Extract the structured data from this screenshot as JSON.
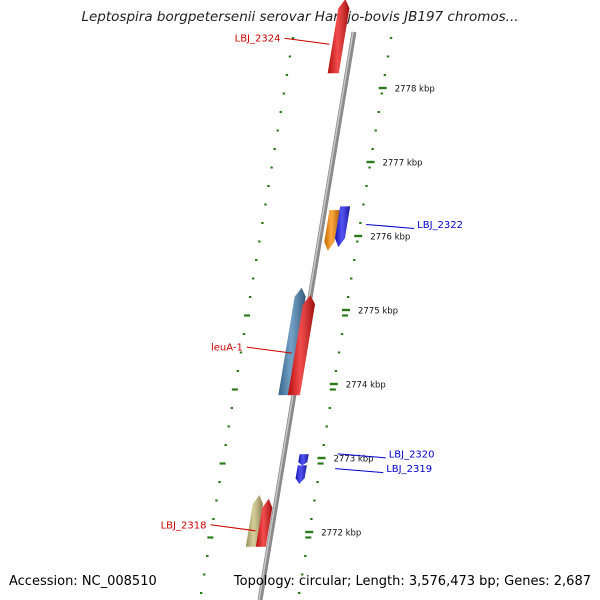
{
  "title": "Leptospira borgpetersenii serovar Hardjo-bovis JB197 chromos...",
  "footer": {
    "accession": "Accession: NC_008510",
    "summary": "Topology: circular; Length: 3,576,473 bp; Genes: 2,687"
  },
  "colors": {
    "backbone": "#8a8a8a",
    "tick": "#2a7a1a",
    "left_label": "#cc0000",
    "right_label": "#0000cc",
    "red": "#ee1111",
    "blue": "#1a1aee",
    "orange": "#ff8c00",
    "steelblue": "#4682b4",
    "khaki": "#c8be78"
  },
  "scale": {
    "unit": "kbp",
    "ticks": [
      {
        "kbp": 2778,
        "label": "2778 kbp"
      },
      {
        "kbp": 2777,
        "label": "2777 kbp"
      },
      {
        "kbp": 2776,
        "label": "2776 kbp"
      },
      {
        "kbp": 2775,
        "label": "2775 kbp"
      },
      {
        "kbp": 2774,
        "label": "2774 kbp"
      },
      {
        "kbp": 2773,
        "label": "2773 kbp"
      },
      {
        "kbp": 2772,
        "label": "2772 kbp"
      }
    ]
  },
  "genes": [
    {
      "label": "LBJ_2324",
      "side": "left",
      "strand": "forward",
      "color": "red",
      "start_kbp": 2778.2,
      "end_kbp": 2779.2
    },
    {
      "label": "",
      "side": "right",
      "strand": "reverse",
      "color": "blue",
      "start_kbp": 2775.85,
      "end_kbp": 2776.4
    },
    {
      "label": "LBJ_2322",
      "side": "right",
      "strand": "reverse",
      "color": "orange",
      "start_kbp": 2775.8,
      "end_kbp": 2776.35
    },
    {
      "label": "",
      "side": "left",
      "strand": "forward",
      "color": "steelblue",
      "start_kbp": 2773.85,
      "end_kbp": 2775.3
    },
    {
      "label": "leuA-1",
      "side": "left",
      "strand": "forward",
      "color": "red",
      "start_kbp": 2773.85,
      "end_kbp": 2775.2
    },
    {
      "label": "LBJ_2320",
      "side": "right",
      "strand": "reverse",
      "color": "blue",
      "start_kbp": 2772.9,
      "end_kbp": 2773.05
    },
    {
      "label": "LBJ_2319",
      "side": "right",
      "strand": "reverse",
      "color": "blue",
      "start_kbp": 2772.65,
      "end_kbp": 2772.9
    },
    {
      "label": "",
      "side": "left",
      "strand": "forward",
      "color": "khaki",
      "start_kbp": 2771.8,
      "end_kbp": 2772.5
    },
    {
      "label": "LBJ_2318",
      "side": "left",
      "strand": "forward",
      "color": "red",
      "start_kbp": 2771.8,
      "end_kbp": 2772.45
    }
  ]
}
